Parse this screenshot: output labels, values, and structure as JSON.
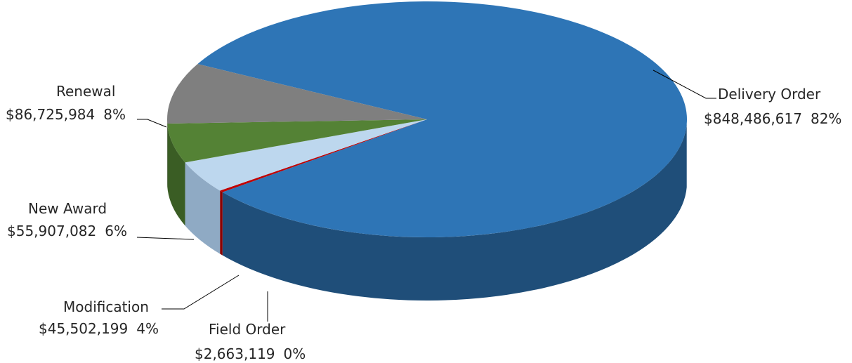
{
  "chart_data": {
    "type": "pie",
    "title": "",
    "slices": [
      {
        "label": "Delivery Order",
        "amount": 848486617,
        "amount_text": "$848,486,617",
        "percent": 82,
        "percent_text": "82%",
        "color": "#2e75b6",
        "side_color": "#1f4e79"
      },
      {
        "label": "Field Order",
        "amount": 2663119,
        "amount_text": "$2,663,119",
        "percent": 0,
        "percent_text": "0%",
        "color": "#c00000",
        "side_color": "#8b0000"
      },
      {
        "label": "Modification",
        "amount": 45502199,
        "amount_text": "$45,502,199",
        "percent": 4,
        "percent_text": "4%",
        "color": "#bdd7ee",
        "side_color": "#8faac4"
      },
      {
        "label": "New Award",
        "amount": 55907082,
        "amount_text": "$55,907,082",
        "percent": 6,
        "percent_text": "6%",
        "color": "#548235",
        "side_color": "#3a5d24"
      },
      {
        "label": "Renewal",
        "amount": 86725984,
        "amount_text": "$86,725,984",
        "percent": 8,
        "percent_text": "8%",
        "color": "#7f7f7f",
        "side_color": "#595959"
      }
    ]
  }
}
